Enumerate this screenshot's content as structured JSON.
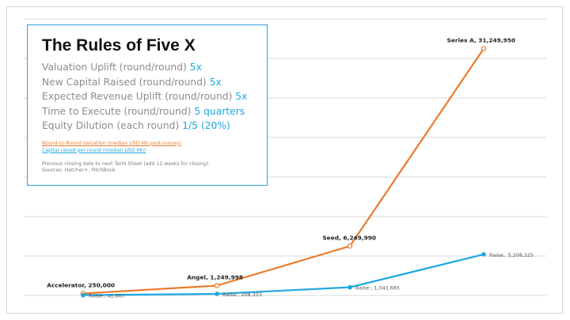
{
  "rules_box": {
    "title": "The Rules of Five X",
    "rules": [
      {
        "label": "Valuation Uplift (round/round) ",
        "value": "5x"
      },
      {
        "label": "New Capital Raised (round/round) ",
        "value": "5x"
      },
      {
        "label": "Expected Revenue Uplift (round/round) ",
        "value": "5x"
      },
      {
        "label": "Time to Execute (round/round) ",
        "value": "5 quarters"
      },
      {
        "label": "Equity Dilution (each round) ",
        "value": "1/5 (20%)"
      }
    ],
    "notes": [
      "Previous closing date to next Term Sheet (add 12 weeks for closing)",
      "Sources: Hatcher+, PitchBook"
    ]
  },
  "colors": {
    "valuation": "#ec7a2c",
    "capital": "#1ea8e0",
    "gridline": "#d9d9d9",
    "box_border": "#2e9fd6"
  },
  "chart_data": {
    "type": "line",
    "categories": [
      "Accelerator",
      "Angel",
      "Seed",
      "Series A"
    ],
    "ylim": [
      0,
      35000000
    ],
    "grid": true,
    "series": [
      {
        "name": "Round-to-Round Valuation (median USD Mn post-money)",
        "values": [
          250000,
          1249998,
          6249990,
          31249950
        ],
        "labels": [
          "Accelerator,  250,000",
          "Angel,  1,249,998",
          "Seed,  6,249,990",
          "Series A,  31,249,950"
        ]
      },
      {
        "name": "Capital raised per round (median USD Mn)",
        "values": [
          41667,
          208333,
          1041665,
          5208325
        ],
        "labels": [
          "Raise:,  41,667",
          "Raise:,  208,333",
          "Raise:,  1,041,665",
          "Raise:,  5,208,325"
        ]
      }
    ]
  }
}
